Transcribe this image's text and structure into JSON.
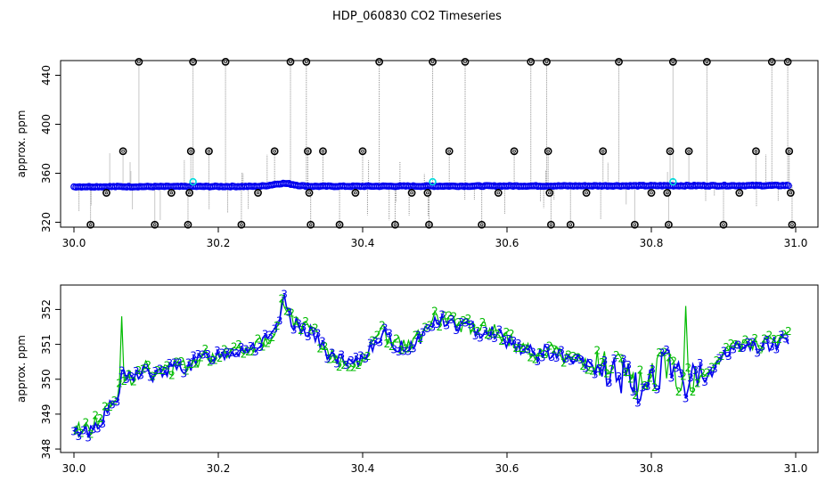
{
  "title": "HDP_060830  CO2 Timeseries",
  "colors": {
    "grey": "#909090",
    "blue": "#0000ee",
    "green": "#00bb00",
    "cyan": "#00dddd",
    "black": "#000000"
  },
  "chart_data": [
    {
      "type": "scatter",
      "ylabel": "approx. ppm",
      "xlim": [
        30.0,
        31.0
      ],
      "ylim": [
        316,
        452
      ],
      "xticks": [
        "30.0",
        "30.2",
        "30.4",
        "30.6",
        "30.8",
        "31.0"
      ],
      "xtick_values": [
        30.0,
        30.2,
        30.4,
        30.6,
        30.8,
        31.0
      ],
      "yticks": [
        "320",
        "360",
        "400",
        "440"
      ],
      "ytick_values": [
        320,
        360,
        400,
        440
      ],
      "baseline_series": {
        "name": "",
        "color": "blue",
        "x_start": 30.0,
        "x_end": 30.99,
        "y_start": 349,
        "y_end": 350,
        "y_peak": 352,
        "x_peak": 30.29
      },
      "outliers": [
        {
          "x": 30.023,
          "y": 318
        },
        {
          "x": 30.045,
          "y": 344
        },
        {
          "x": 30.068,
          "y": 378
        },
        {
          "x": 30.09,
          "y": 451
        },
        {
          "x": 30.112,
          "y": 318
        },
        {
          "x": 30.135,
          "y": 344
        },
        {
          "x": 30.158,
          "y": 318
        },
        {
          "x": 30.16,
          "y": 344
        },
        {
          "x": 30.162,
          "y": 378
        },
        {
          "x": 30.165,
          "y": 451
        },
        {
          "x": 30.187,
          "y": 378
        },
        {
          "x": 30.21,
          "y": 451
        },
        {
          "x": 30.232,
          "y": 318
        },
        {
          "x": 30.255,
          "y": 344
        },
        {
          "x": 30.278,
          "y": 378
        },
        {
          "x": 30.3,
          "y": 451
        },
        {
          "x": 30.322,
          "y": 451
        },
        {
          "x": 30.324,
          "y": 378
        },
        {
          "x": 30.326,
          "y": 344
        },
        {
          "x": 30.328,
          "y": 318
        },
        {
          "x": 30.345,
          "y": 378
        },
        {
          "x": 30.368,
          "y": 318
        },
        {
          "x": 30.39,
          "y": 344
        },
        {
          "x": 30.4,
          "y": 378
        },
        {
          "x": 30.423,
          "y": 451
        },
        {
          "x": 30.445,
          "y": 318
        },
        {
          "x": 30.468,
          "y": 344
        },
        {
          "x": 30.49,
          "y": 344
        },
        {
          "x": 30.492,
          "y": 318
        },
        {
          "x": 30.497,
          "y": 451
        },
        {
          "x": 30.52,
          "y": 378
        },
        {
          "x": 30.542,
          "y": 451
        },
        {
          "x": 30.565,
          "y": 318
        },
        {
          "x": 30.588,
          "y": 344
        },
        {
          "x": 30.61,
          "y": 378
        },
        {
          "x": 30.633,
          "y": 451
        },
        {
          "x": 30.655,
          "y": 451
        },
        {
          "x": 30.657,
          "y": 378
        },
        {
          "x": 30.659,
          "y": 344
        },
        {
          "x": 30.661,
          "y": 318
        },
        {
          "x": 30.688,
          "y": 318
        },
        {
          "x": 30.71,
          "y": 344
        },
        {
          "x": 30.733,
          "y": 378
        },
        {
          "x": 30.755,
          "y": 451
        },
        {
          "x": 30.777,
          "y": 318
        },
        {
          "x": 30.8,
          "y": 344
        },
        {
          "x": 30.822,
          "y": 344
        },
        {
          "x": 30.824,
          "y": 318
        },
        {
          "x": 30.826,
          "y": 378
        },
        {
          "x": 30.83,
          "y": 451
        },
        {
          "x": 30.852,
          "y": 378
        },
        {
          "x": 30.877,
          "y": 451
        },
        {
          "x": 30.9,
          "y": 318
        },
        {
          "x": 30.922,
          "y": 344
        },
        {
          "x": 30.945,
          "y": 378
        },
        {
          "x": 30.967,
          "y": 451
        },
        {
          "x": 30.989,
          "y": 451
        },
        {
          "x": 30.991,
          "y": 378
        },
        {
          "x": 30.993,
          "y": 344
        },
        {
          "x": 30.995,
          "y": 318
        }
      ],
      "cyan_points": [
        {
          "x": 30.165,
          "y": 353
        },
        {
          "x": 30.497,
          "y": 353
        },
        {
          "x": 30.83,
          "y": 353
        }
      ]
    },
    {
      "type": "line",
      "ylabel": "approx. ppm",
      "xlim": [
        30.0,
        31.0
      ],
      "ylim": [
        347.9,
        352.7
      ],
      "xticks": [
        "30.0",
        "30.2",
        "30.4",
        "30.6",
        "30.8",
        "31.0"
      ],
      "xtick_values": [
        30.0,
        30.2,
        30.4,
        30.6,
        30.8,
        31.0
      ],
      "yticks": [
        "348",
        "349",
        "350",
        "351",
        "352"
      ],
      "ytick_values": [
        348,
        349,
        350,
        351,
        352
      ],
      "series": [
        {
          "marker": "2",
          "color": "green"
        },
        {
          "marker": "3",
          "color": "blue"
        }
      ],
      "trend": [
        [
          30.0,
          348.4
        ],
        [
          30.01,
          348.6
        ],
        [
          30.02,
          348.5
        ],
        [
          30.03,
          348.7
        ],
        [
          30.04,
          348.9
        ],
        [
          30.05,
          349.2
        ],
        [
          30.06,
          349.4
        ],
        [
          30.065,
          350.0
        ],
        [
          30.07,
          350.1
        ],
        [
          30.08,
          350.0
        ],
        [
          30.09,
          350.2
        ],
        [
          30.1,
          350.3
        ],
        [
          30.11,
          350.0
        ],
        [
          30.12,
          350.2
        ],
        [
          30.14,
          350.3
        ],
        [
          30.16,
          350.4
        ],
        [
          30.18,
          350.6
        ],
        [
          30.2,
          350.7
        ],
        [
          30.22,
          350.8
        ],
        [
          30.24,
          350.9
        ],
        [
          30.26,
          351.0
        ],
        [
          30.28,
          351.3
        ],
        [
          30.29,
          352.3
        ],
        [
          30.3,
          351.7
        ],
        [
          30.31,
          351.5
        ],
        [
          30.33,
          351.4
        ],
        [
          30.34,
          351.0
        ],
        [
          30.36,
          350.6
        ],
        [
          30.38,
          350.4
        ],
        [
          30.39,
          350.4
        ],
        [
          30.4,
          350.6
        ],
        [
          30.41,
          350.9
        ],
        [
          30.42,
          351.2
        ],
        [
          30.43,
          351.3
        ],
        [
          30.44,
          351.0
        ],
        [
          30.46,
          350.9
        ],
        [
          30.48,
          351.2
        ],
        [
          30.5,
          351.7
        ],
        [
          30.52,
          351.6
        ],
        [
          30.54,
          351.5
        ],
        [
          30.56,
          351.4
        ],
        [
          30.58,
          351.4
        ],
        [
          30.6,
          351.1
        ],
        [
          30.62,
          350.9
        ],
        [
          30.64,
          350.7
        ],
        [
          30.66,
          350.8
        ],
        [
          30.68,
          350.6
        ],
        [
          30.7,
          350.5
        ],
        [
          30.72,
          350.3
        ],
        [
          30.74,
          350.2
        ],
        [
          30.76,
          350.1
        ],
        [
          30.78,
          349.6
        ],
        [
          30.8,
          350.1
        ],
        [
          30.82,
          350.4
        ],
        [
          30.84,
          349.9
        ],
        [
          30.86,
          350.0
        ],
        [
          30.88,
          350.2
        ],
        [
          30.9,
          350.6
        ],
        [
          30.92,
          351.0
        ],
        [
          30.94,
          350.9
        ],
        [
          30.96,
          351.0
        ],
        [
          30.98,
          351.1
        ],
        [
          30.99,
          351.2
        ]
      ],
      "green_spikes": [
        {
          "x": 30.065,
          "y": 351.8
        },
        {
          "x": 30.849,
          "y": 352.1
        }
      ]
    }
  ]
}
